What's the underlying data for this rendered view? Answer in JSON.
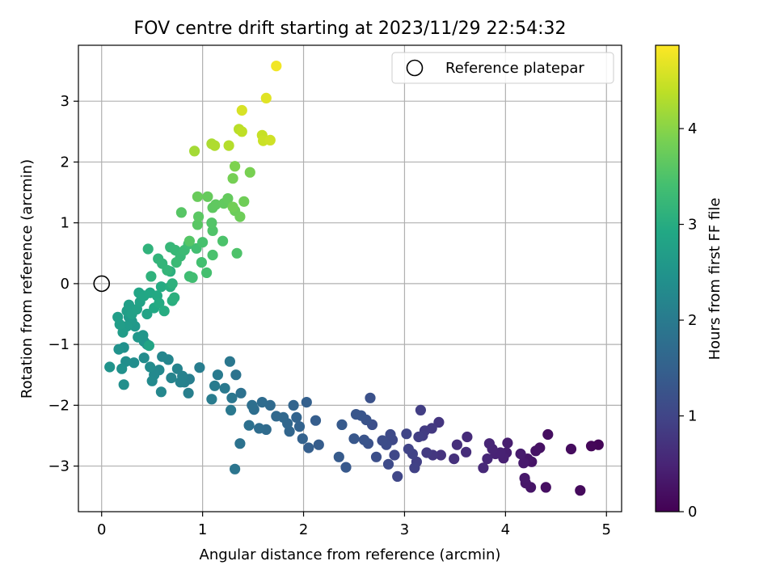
{
  "chart_data": {
    "type": "scatter",
    "title": "FOV centre drift starting at 2023/11/29 22:54:32",
    "xlabel": "Angular distance from reference (arcmin)",
    "ylabel": "Rotation from reference (arcmin)",
    "xlim": [
      -0.23,
      5.15
    ],
    "ylim": [
      -3.75,
      3.92
    ],
    "xticks": [
      0,
      1,
      2,
      3,
      4,
      5
    ],
    "yticks": [
      -3,
      -2,
      -1,
      0,
      1,
      2,
      3
    ],
    "xtick_labels": [
      "0",
      "1",
      "2",
      "3",
      "4",
      "5"
    ],
    "ytick_labels": [
      "−3",
      "−2",
      "−1",
      "0",
      "1",
      "2",
      "3"
    ],
    "grid": true,
    "legend": {
      "placement": "top-right",
      "entries": [
        "Reference platepar"
      ]
    },
    "reference_point": {
      "x": 0,
      "y": 0,
      "marker": "open-circle",
      "label": "Reference platepar"
    },
    "colorbar": {
      "label": "Hours from first FF file",
      "colormap": "viridis",
      "range": [
        0,
        4.87
      ],
      "ticks": [
        0,
        1,
        2,
        3,
        4
      ],
      "tick_labels": [
        "0",
        "1",
        "2",
        "3",
        "4"
      ]
    },
    "series": [
      {
        "color_by": "hours",
        "points": [
          [
            4.92,
            -2.65,
            0.05
          ],
          [
            4.85,
            -2.67,
            0.08
          ],
          [
            4.74,
            -3.4,
            0.12
          ],
          [
            4.65,
            -2.72,
            0.15
          ],
          [
            4.42,
            -2.48,
            0.18
          ],
          [
            4.4,
            -3.35,
            0.2
          ],
          [
            4.34,
            -2.7,
            0.22
          ],
          [
            4.3,
            -2.75,
            0.25
          ],
          [
            4.26,
            -2.93,
            0.27
          ],
          [
            4.25,
            -3.35,
            0.28
          ],
          [
            4.22,
            -2.88,
            0.3
          ],
          [
            4.2,
            -3.28,
            0.31
          ],
          [
            4.19,
            -3.2,
            0.33
          ],
          [
            4.18,
            -2.95,
            0.35
          ],
          [
            4.15,
            -2.8,
            0.37
          ],
          [
            4.02,
            -2.62,
            0.4
          ],
          [
            4.01,
            -2.78,
            0.42
          ],
          [
            3.98,
            -2.87,
            0.44
          ],
          [
            3.95,
            -2.78,
            0.46
          ],
          [
            3.9,
            -2.8,
            0.48
          ],
          [
            3.87,
            -2.72,
            0.5
          ],
          [
            3.84,
            -2.63,
            0.52
          ],
          [
            3.82,
            -2.88,
            0.54
          ],
          [
            3.78,
            -3.03,
            0.56
          ],
          [
            3.62,
            -2.52,
            0.6
          ],
          [
            3.61,
            -2.77,
            0.62
          ],
          [
            3.52,
            -2.65,
            0.65
          ],
          [
            3.49,
            -2.88,
            0.68
          ],
          [
            3.36,
            -2.82,
            0.72
          ],
          [
            3.34,
            -2.28,
            0.75
          ],
          [
            3.28,
            -2.82,
            0.78
          ],
          [
            3.27,
            -2.38,
            0.8
          ],
          [
            3.22,
            -2.78,
            0.82
          ],
          [
            3.2,
            -2.42,
            0.84
          ],
          [
            3.18,
            -2.5,
            0.86
          ],
          [
            3.16,
            -2.08,
            0.88
          ],
          [
            3.14,
            -2.52,
            0.9
          ],
          [
            3.12,
            -2.93,
            0.92
          ],
          [
            3.1,
            -3.03,
            0.94
          ],
          [
            3.08,
            -2.8,
            0.96
          ],
          [
            3.04,
            -2.72,
            0.98
          ],
          [
            3.02,
            -2.47,
            1.0
          ],
          [
            2.93,
            -3.17,
            1.02
          ],
          [
            2.9,
            -2.82,
            1.04
          ],
          [
            2.88,
            -2.57,
            1.06
          ],
          [
            2.86,
            -2.48,
            1.08
          ],
          [
            2.84,
            -2.97,
            1.1
          ],
          [
            2.82,
            -2.65,
            1.12
          ],
          [
            2.78,
            -2.58,
            1.14
          ],
          [
            2.72,
            -2.85,
            1.16
          ],
          [
            2.68,
            -2.32,
            1.18
          ],
          [
            2.66,
            -1.88,
            1.2
          ],
          [
            2.64,
            -2.63,
            1.22
          ],
          [
            2.62,
            -2.24,
            1.24
          ],
          [
            2.6,
            -2.57,
            1.26
          ],
          [
            2.57,
            -2.17,
            1.28
          ],
          [
            2.52,
            -2.15,
            1.3
          ],
          [
            2.5,
            -2.55,
            1.32
          ],
          [
            2.42,
            -3.02,
            1.35
          ],
          [
            2.38,
            -2.32,
            1.37
          ],
          [
            2.35,
            -2.85,
            1.39
          ],
          [
            2.15,
            -2.65,
            1.42
          ],
          [
            2.12,
            -2.25,
            1.44
          ],
          [
            2.05,
            -2.7,
            1.47
          ],
          [
            2.03,
            -1.95,
            1.49
          ],
          [
            1.99,
            -2.55,
            1.51
          ],
          [
            1.96,
            -2.35,
            1.53
          ],
          [
            1.93,
            -2.2,
            1.55
          ],
          [
            1.9,
            -2.0,
            1.57
          ],
          [
            1.86,
            -2.43,
            1.59
          ],
          [
            1.84,
            -2.3,
            1.61
          ],
          [
            1.8,
            -2.2,
            1.63
          ],
          [
            1.73,
            -2.18,
            1.66
          ],
          [
            1.67,
            -2.0,
            1.68
          ],
          [
            1.63,
            -2.4,
            1.7
          ],
          [
            1.59,
            -1.95,
            1.72
          ],
          [
            1.56,
            -2.38,
            1.74
          ],
          [
            1.51,
            -2.07,
            1.76
          ],
          [
            1.49,
            -2.0,
            1.78
          ],
          [
            1.46,
            -2.33,
            1.8
          ],
          [
            1.38,
            -1.8,
            1.82
          ],
          [
            1.37,
            -2.63,
            1.84
          ],
          [
            1.33,
            -1.5,
            1.86
          ],
          [
            1.32,
            -3.05,
            1.88
          ],
          [
            1.29,
            -1.88,
            1.9
          ],
          [
            1.27,
            -1.28,
            1.92
          ],
          [
            1.28,
            -2.08,
            1.94
          ],
          [
            1.22,
            -1.72,
            1.96
          ],
          [
            1.15,
            -1.5,
            1.98
          ],
          [
            1.12,
            -1.68,
            2.0
          ],
          [
            1.09,
            -1.9,
            2.02
          ],
          [
            0.97,
            -1.38,
            2.04
          ],
          [
            0.87,
            -1.57,
            2.06
          ],
          [
            0.86,
            -1.8,
            2.08
          ],
          [
            0.82,
            -1.62,
            2.1
          ],
          [
            0.8,
            -1.52,
            2.12
          ],
          [
            0.78,
            -1.62,
            2.14
          ],
          [
            0.75,
            -1.4,
            2.16
          ],
          [
            0.69,
            -1.55,
            2.18
          ],
          [
            0.66,
            -1.25,
            2.2
          ],
          [
            0.6,
            -1.2,
            2.22
          ],
          [
            0.59,
            -1.78,
            2.24
          ],
          [
            0.57,
            -1.42,
            2.26
          ],
          [
            0.52,
            -1.5,
            2.28
          ],
          [
            0.5,
            -1.6,
            2.3
          ],
          [
            0.48,
            -1.37,
            2.32
          ],
          [
            0.42,
            -1.22,
            2.34
          ],
          [
            0.32,
            -1.3,
            2.36
          ],
          [
            0.24,
            -1.28,
            2.38
          ],
          [
            0.22,
            -1.66,
            2.4
          ],
          [
            0.22,
            -1.05,
            2.42
          ],
          [
            0.2,
            -1.4,
            2.44
          ],
          [
            0.17,
            -1.08,
            2.46
          ],
          [
            0.08,
            -1.37,
            2.48
          ],
          [
            0.45,
            -1.0,
            2.5
          ],
          [
            0.42,
            -0.95,
            2.52
          ],
          [
            0.41,
            -0.85,
            2.54
          ],
          [
            0.36,
            -0.88,
            2.56
          ],
          [
            0.33,
            -0.7,
            2.58
          ],
          [
            0.3,
            -0.62,
            2.6
          ],
          [
            0.27,
            -0.55,
            2.62
          ],
          [
            0.25,
            -0.7,
            2.64
          ],
          [
            0.21,
            -0.8,
            2.66
          ],
          [
            0.18,
            -0.67,
            2.68
          ],
          [
            0.16,
            -0.55,
            2.7
          ],
          [
            0.25,
            -0.45,
            2.72
          ],
          [
            0.27,
            -0.35,
            2.74
          ],
          [
            0.3,
            -0.5,
            2.76
          ],
          [
            0.35,
            -0.42,
            2.78
          ],
          [
            0.38,
            -0.3,
            2.8
          ],
          [
            0.45,
            -0.5,
            2.82
          ],
          [
            0.47,
            -1.02,
            2.84
          ],
          [
            0.37,
            -0.15,
            2.86
          ],
          [
            0.42,
            -0.2,
            2.88
          ],
          [
            0.48,
            -0.15,
            2.9
          ],
          [
            0.52,
            -0.4,
            2.92
          ],
          [
            0.55,
            -0.2,
            2.94
          ],
          [
            0.57,
            -0.32,
            2.96
          ],
          [
            0.59,
            -0.05,
            2.98
          ],
          [
            0.62,
            -0.45,
            3.0
          ],
          [
            0.68,
            -0.05,
            3.02
          ],
          [
            0.7,
            -0.28,
            3.04
          ],
          [
            0.72,
            -0.23,
            3.06
          ],
          [
            0.68,
            0.2,
            3.08
          ],
          [
            0.7,
            0.0,
            3.1
          ],
          [
            0.49,
            0.12,
            3.12
          ],
          [
            0.46,
            0.57,
            3.14
          ],
          [
            0.56,
            0.41,
            3.16
          ],
          [
            0.6,
            0.33,
            3.18
          ],
          [
            0.65,
            0.22,
            3.2
          ],
          [
            0.68,
            0.6,
            3.22
          ],
          [
            0.73,
            0.55,
            3.24
          ],
          [
            0.78,
            0.45,
            3.26
          ],
          [
            0.74,
            0.35,
            3.28
          ],
          [
            0.82,
            0.55,
            3.3
          ],
          [
            0.86,
            0.65,
            3.32
          ],
          [
            0.87,
            0.12,
            3.34
          ],
          [
            0.9,
            0.1,
            3.36
          ],
          [
            0.94,
            0.58,
            3.38
          ],
          [
            0.99,
            0.35,
            3.4
          ],
          [
            1.04,
            0.18,
            3.42
          ],
          [
            1.0,
            0.68,
            3.44
          ],
          [
            1.1,
            0.47,
            3.46
          ],
          [
            1.2,
            0.7,
            3.48
          ],
          [
            1.34,
            0.5,
            3.5
          ],
          [
            1.1,
            0.87,
            3.52
          ],
          [
            1.09,
            1.0,
            3.54
          ],
          [
            0.87,
            0.7,
            3.56
          ],
          [
            0.79,
            1.17,
            3.58
          ],
          [
            0.95,
            0.97,
            3.6
          ],
          [
            0.96,
            1.1,
            3.62
          ],
          [
            1.1,
            1.25,
            3.64
          ],
          [
            1.13,
            1.3,
            3.66
          ],
          [
            1.21,
            1.32,
            3.68
          ],
          [
            1.25,
            1.4,
            3.7
          ],
          [
            1.05,
            1.43,
            3.72
          ],
          [
            0.95,
            1.43,
            3.74
          ],
          [
            1.32,
            1.2,
            3.76
          ],
          [
            1.37,
            1.1,
            3.78
          ],
          [
            1.41,
            1.35,
            3.8
          ],
          [
            1.3,
            1.26,
            3.82
          ],
          [
            1.3,
            1.73,
            3.85
          ],
          [
            1.47,
            1.83,
            3.88
          ],
          [
            1.32,
            1.93,
            3.92
          ],
          [
            0.92,
            2.18,
            4.2
          ],
          [
            1.09,
            2.3,
            4.25
          ],
          [
            1.12,
            2.27,
            4.28
          ],
          [
            1.26,
            2.27,
            4.32
          ],
          [
            1.36,
            2.54,
            4.35
          ],
          [
            1.39,
            2.5,
            4.4
          ],
          [
            1.59,
            2.44,
            4.45
          ],
          [
            1.6,
            2.35,
            4.48
          ],
          [
            1.67,
            2.36,
            4.52
          ],
          [
            1.39,
            2.85,
            4.58
          ],
          [
            1.63,
            3.05,
            4.65
          ],
          [
            1.73,
            3.58,
            4.78
          ]
        ]
      }
    ]
  }
}
